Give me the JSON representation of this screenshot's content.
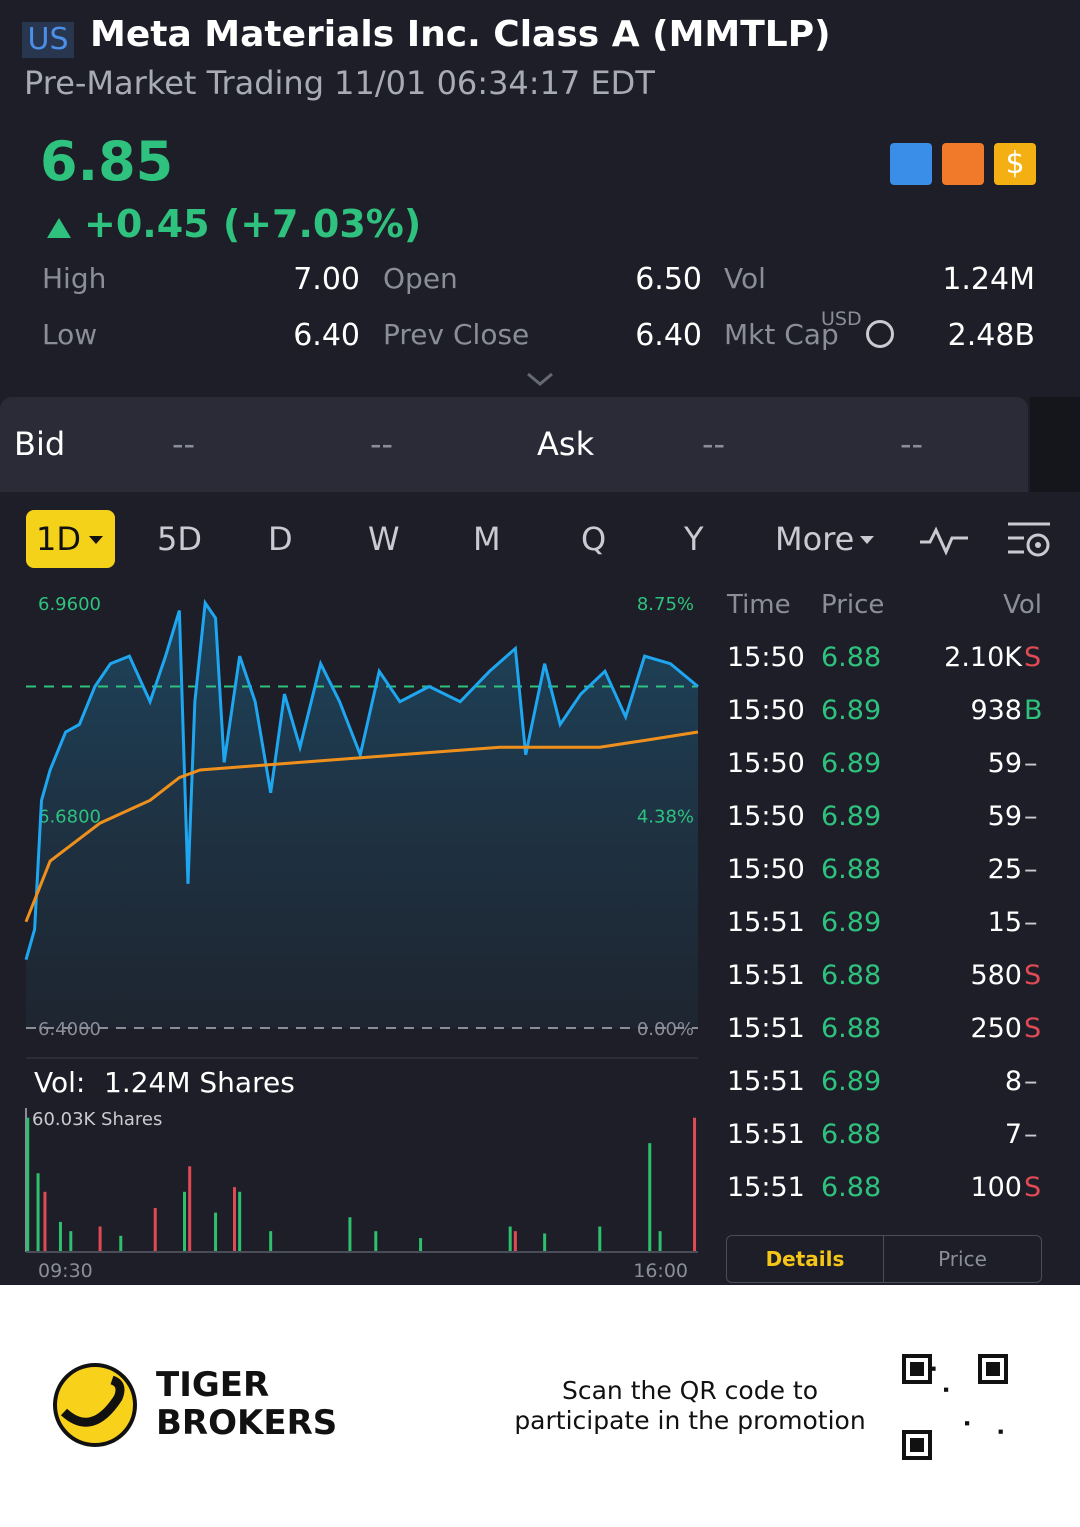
{
  "header": {
    "market": "US",
    "title": "Meta Materials Inc. Class A (MMTLP)",
    "subtitle": "Pre-Market Trading 11/01 06:34:17 EDT"
  },
  "quote": {
    "price": 6.85,
    "change": "+0.45 (+7.03%)",
    "stats": [
      {
        "label": "High",
        "value": "7.00"
      },
      {
        "label": "Open",
        "value": "6.50"
      },
      {
        "label": "Vol",
        "value": "1.24M"
      },
      {
        "label": "Low",
        "value": "6.40"
      },
      {
        "label": "Prev Close",
        "value": "6.40"
      },
      {
        "label": "Mkt Cap",
        "value": "2.48B",
        "unit": "USD"
      }
    ]
  },
  "order_book": {
    "bid_label": "Bid",
    "bid": [
      "--",
      "--"
    ],
    "ask_label": "Ask",
    "ask": [
      "--",
      "--"
    ]
  },
  "periods": [
    "1D",
    "5D",
    "D",
    "W",
    "M",
    "Q",
    "Y",
    "More"
  ],
  "chart": {
    "type": "line",
    "xlim": [
      0,
      390
    ],
    "xticks": [
      {
        "value": 0,
        "label": "09:30"
      },
      {
        "value": 390,
        "label": "16:00"
      }
    ],
    "ylim": [
      6.4,
      6.96
    ],
    "yticks": [
      {
        "value": 6.96,
        "label": "6.9600"
      },
      {
        "value": 6.68,
        "label": "6.6800"
      },
      {
        "value": 6.4,
        "label": "6.4000"
      }
    ],
    "y2lim": [
      0,
      8.75
    ],
    "y2ticks": [
      {
        "value": 8.75,
        "label": "8.75%"
      },
      {
        "value": 4.38,
        "label": "4.38%"
      },
      {
        "value": 0,
        "label": "0.00%"
      }
    ],
    "series": [
      {
        "color": "#1ea7f0",
        "x": [
          0,
          5,
          9,
          14,
          23,
          31,
          40,
          49,
          60,
          72,
          81,
          89,
          94,
          98,
          104,
          110,
          115,
          124,
          133,
          142,
          150,
          159,
          171,
          182,
          194,
          205,
          217,
          234,
          252,
          269,
          284,
          290,
          301,
          310,
          322,
          336,
          348,
          359,
          374,
          390
        ],
        "values": [
          6.49,
          6.53,
          6.7,
          6.74,
          6.79,
          6.8,
          6.85,
          6.88,
          6.89,
          6.83,
          6.89,
          6.95,
          6.59,
          6.83,
          6.96,
          6.94,
          6.75,
          6.89,
          6.83,
          6.71,
          6.84,
          6.77,
          6.88,
          6.83,
          6.76,
          6.87,
          6.83,
          6.85,
          6.83,
          6.87,
          6.9,
          6.76,
          6.88,
          6.8,
          6.84,
          6.87,
          6.81,
          6.89,
          6.88,
          6.85
        ]
      },
      {
        "color": "#f0901c",
        "x": [
          0,
          14,
          43,
          72,
          89,
          101,
          159,
          217,
          275,
          333,
          362,
          390
        ],
        "values": [
          6.54,
          6.62,
          6.67,
          6.7,
          6.73,
          6.74,
          6.75,
          6.76,
          6.77,
          6.77,
          6.78,
          6.79
        ]
      }
    ],
    "volume": {
      "label": "Vol:",
      "total": "1.24M Shares",
      "ylim": [
        0,
        60.03
      ],
      "yticks": [
        {
          "value": 60.03,
          "label": "60.03K Shares"
        }
      ],
      "series": [
        {
          "color": "#2fbf6e",
          "x": [
            1,
            7,
            20,
            26,
            55,
            92,
            110,
            124,
            142,
            188,
            203,
            229,
            281,
            301,
            333,
            362,
            368
          ],
          "values": [
            58,
            34,
            13,
            9,
            7,
            26,
            17,
            26,
            9,
            15,
            9,
            6,
            11,
            8,
            11,
            47,
            9
          ]
        },
        {
          "color": "#e04a55",
          "x": [
            11,
            43,
            75,
            95,
            121,
            284,
            388
          ],
          "values": [
            26,
            11,
            19,
            37,
            28,
            9,
            58
          ]
        }
      ]
    }
  },
  "trades": {
    "headers": [
      "Time",
      "Price",
      "Vol"
    ],
    "rows": [
      [
        "15:50",
        "6.88",
        "2.10K",
        "S"
      ],
      [
        "15:50",
        "6.89",
        "938",
        "B"
      ],
      [
        "15:50",
        "6.89",
        "59",
        "–"
      ],
      [
        "15:50",
        "6.89",
        "59",
        "–"
      ],
      [
        "15:50",
        "6.88",
        "25",
        "–"
      ],
      [
        "15:51",
        "6.89",
        "15",
        "–"
      ],
      [
        "15:51",
        "6.88",
        "580",
        "S"
      ],
      [
        "15:51",
        "6.88",
        "250",
        "S"
      ],
      [
        "15:51",
        "6.89",
        "8",
        "–"
      ],
      [
        "15:51",
        "6.88",
        "7",
        "–"
      ],
      [
        "15:51",
        "6.88",
        "100",
        "S"
      ]
    ]
  },
  "trade_tabs": [
    "Details",
    "Price"
  ],
  "footer": {
    "brand": [
      "TIGER",
      "BROKERS"
    ],
    "promo": [
      "Scan the QR code to",
      "participate in the promotion"
    ]
  }
}
